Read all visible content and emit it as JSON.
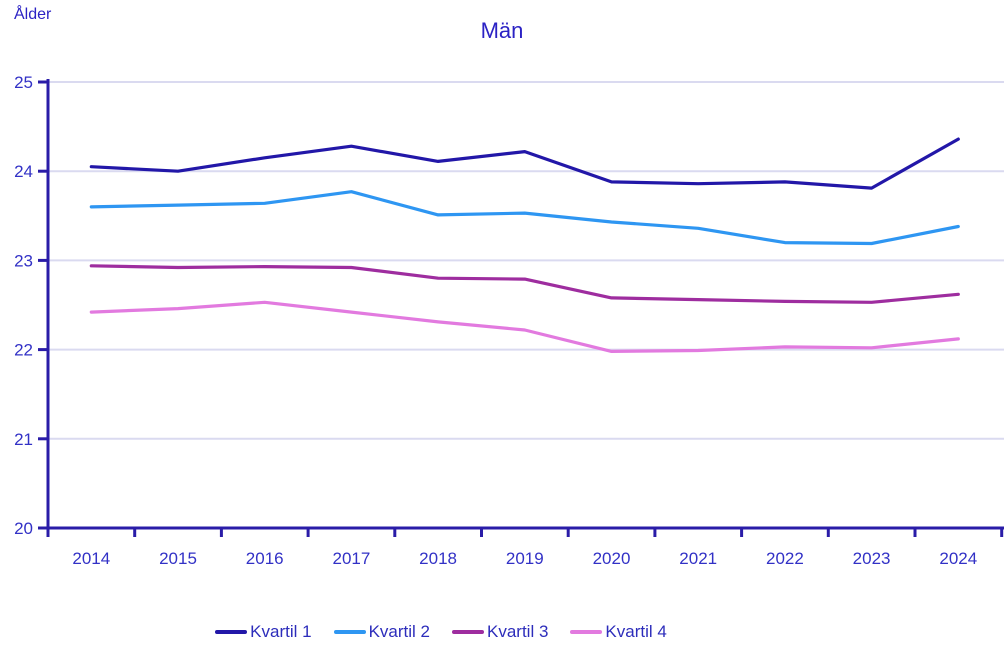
{
  "chart_data": {
    "type": "line",
    "title": "Män",
    "ylabel": "Ålder",
    "xlabel": "",
    "x": [
      "2014",
      "2015",
      "2016",
      "2017",
      "2018",
      "2019",
      "2020",
      "2021",
      "2022",
      "2023",
      "2024"
    ],
    "ylim": [
      20,
      25
    ],
    "yticks": [
      20,
      21,
      22,
      23,
      24,
      25
    ],
    "grid": true,
    "legend_position": "bottom",
    "series": [
      {
        "name": "Kvartil 1",
        "color": "#2217a8",
        "values": [
          24.05,
          24.0,
          24.15,
          24.28,
          24.11,
          24.22,
          23.88,
          23.86,
          23.88,
          23.81,
          24.36
        ]
      },
      {
        "name": "Kvartil 2",
        "color": "#2e96f2",
        "values": [
          23.6,
          23.62,
          23.64,
          23.77,
          23.51,
          23.53,
          23.43,
          23.36,
          23.2,
          23.19,
          23.38
        ]
      },
      {
        "name": "Kvartil 3",
        "color": "#9e2d9f",
        "values": [
          22.94,
          22.92,
          22.93,
          22.92,
          22.8,
          22.79,
          22.58,
          22.56,
          22.54,
          22.53,
          22.62
        ]
      },
      {
        "name": "Kvartil 4",
        "color": "#e27adf",
        "values": [
          22.42,
          22.46,
          22.53,
          22.42,
          22.31,
          22.22,
          21.98,
          21.99,
          22.03,
          22.02,
          22.12
        ]
      }
    ]
  },
  "colors": {
    "axis": "#2a1ca8",
    "grid": "#dadaf0",
    "tick_label": "#3231c6",
    "title_text": "#2b22c4",
    "legend_text": "#2d2dbb"
  }
}
